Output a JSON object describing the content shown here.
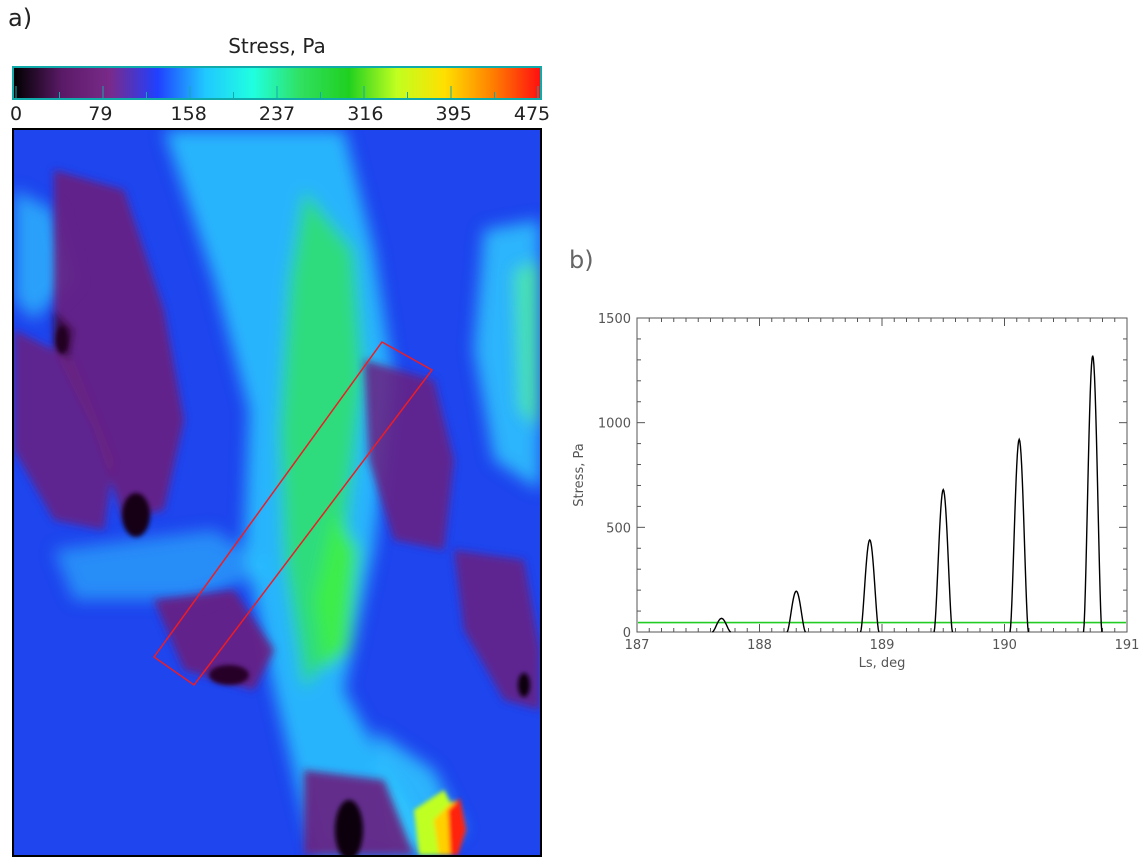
{
  "panels": {
    "a_label": "a)",
    "b_label": "b)"
  },
  "colorbar": {
    "title": "Stress, Pa",
    "ticks": [
      "0",
      "79",
      "158",
      "237",
      "316",
      "395",
      "475"
    ],
    "range": [
      0,
      475
    ],
    "colors": [
      "#000000",
      "#5a1a66",
      "#7a2a8a",
      "#2040ff",
      "#20c8ff",
      "#20ffe0",
      "#30e060",
      "#20d020",
      "#c0ff20",
      "#ffe000",
      "#ff8000",
      "#ff1010"
    ]
  },
  "stress_map": {
    "background": "#1e45ee",
    "selection_box_color": "#ee1c24"
  },
  "chart_data": {
    "type": "line",
    "title": "",
    "xlabel": "Ls, deg",
    "ylabel": "Stress, Pa",
    "xlim": [
      187,
      191
    ],
    "ylim": [
      0,
      1500
    ],
    "xticks": [
      "187",
      "188",
      "189",
      "190",
      "191"
    ],
    "yticks": [
      "0",
      "500",
      "1000",
      "1500"
    ],
    "threshold": {
      "value": 45,
      "color": "#22cc22"
    },
    "series": [
      {
        "color": "#000000",
        "peaks": [
          {
            "ls": 187.69,
            "stress": 65
          },
          {
            "ls": 188.3,
            "stress": 195
          },
          {
            "ls": 188.9,
            "stress": 440
          },
          {
            "ls": 189.5,
            "stress": 680
          },
          {
            "ls": 190.12,
            "stress": 920
          },
          {
            "ls": 190.72,
            "stress": 1320
          }
        ]
      }
    ]
  }
}
